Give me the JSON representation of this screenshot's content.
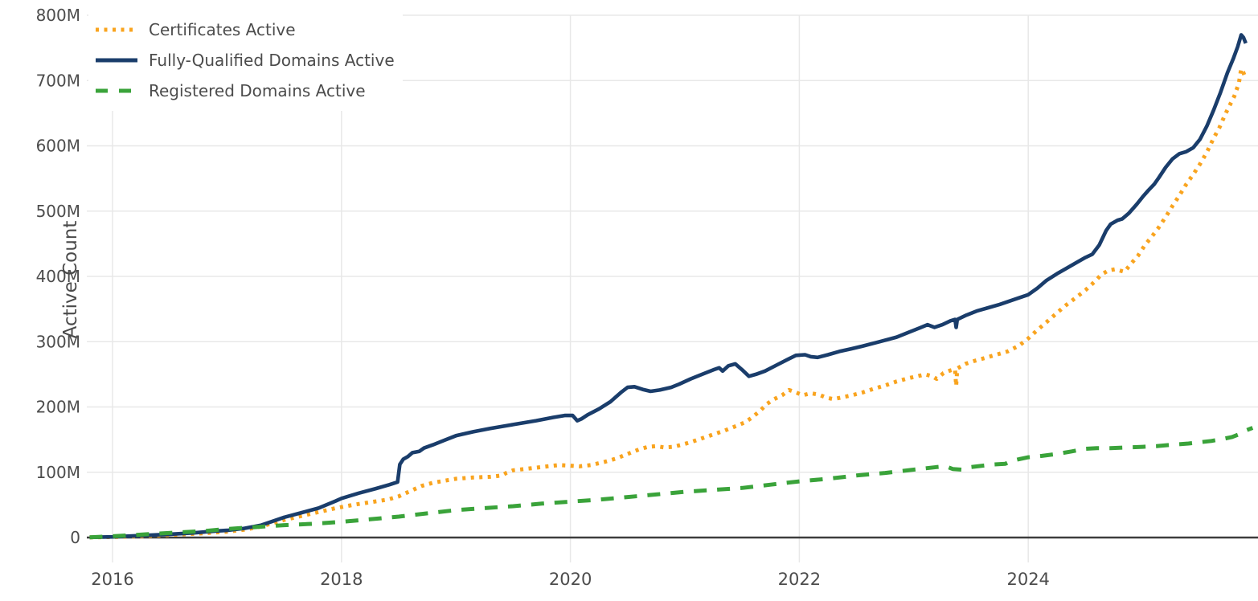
{
  "chart_data": {
    "type": "line",
    "title": "",
    "xlabel": "",
    "ylabel": "Active Count",
    "x_unit": "year",
    "xlim": [
      2015.78,
      2025.97
    ],
    "ylim": [
      0,
      800
    ],
    "grid": true,
    "legend_position": "top-left",
    "x_ticks": [
      2016,
      2018,
      2020,
      2022,
      2024
    ],
    "x_tick_labels": [
      "2016",
      "2018",
      "2020",
      "2022",
      "2024"
    ],
    "y_ticks": [
      0,
      100,
      200,
      300,
      400,
      500,
      600,
      700,
      800
    ],
    "y_tick_labels": [
      "0",
      "100M",
      "200M",
      "300M",
      "400M",
      "500M",
      "600M",
      "700M",
      "800M"
    ],
    "y_unit": "millions",
    "series": [
      {
        "name": "Certificates Active",
        "color": "#f9a41f",
        "style": "dotted",
        "points": [
          [
            2015.8,
            0.2
          ],
          [
            2016.0,
            0.8
          ],
          [
            2016.25,
            2
          ],
          [
            2016.5,
            4
          ],
          [
            2016.75,
            6
          ],
          [
            2017.0,
            9
          ],
          [
            2017.15,
            12
          ],
          [
            2017.3,
            17
          ],
          [
            2017.4,
            22
          ],
          [
            2017.5,
            27
          ],
          [
            2017.65,
            33
          ],
          [
            2017.8,
            39
          ],
          [
            2017.95,
            45
          ],
          [
            2018.1,
            50
          ],
          [
            2018.25,
            54
          ],
          [
            2018.4,
            58
          ],
          [
            2018.5,
            63
          ],
          [
            2018.6,
            71
          ],
          [
            2018.7,
            79
          ],
          [
            2018.8,
            84
          ],
          [
            2018.9,
            87
          ],
          [
            2019.0,
            90
          ],
          [
            2019.15,
            92
          ],
          [
            2019.3,
            93
          ],
          [
            2019.4,
            95
          ],
          [
            2019.44,
            99
          ],
          [
            2019.5,
            103
          ],
          [
            2019.6,
            105
          ],
          [
            2019.7,
            107
          ],
          [
            2019.8,
            109
          ],
          [
            2019.9,
            111
          ],
          [
            2020.0,
            110
          ],
          [
            2020.08,
            109
          ],
          [
            2020.18,
            111
          ],
          [
            2020.3,
            116
          ],
          [
            2020.4,
            121
          ],
          [
            2020.5,
            128
          ],
          [
            2020.6,
            135
          ],
          [
            2020.68,
            139
          ],
          [
            2020.75,
            140
          ],
          [
            2020.82,
            138
          ],
          [
            2020.9,
            139
          ],
          [
            2020.97,
            142
          ],
          [
            2021.05,
            146
          ],
          [
            2021.15,
            152
          ],
          [
            2021.25,
            158
          ],
          [
            2021.35,
            164
          ],
          [
            2021.45,
            171
          ],
          [
            2021.52,
            176
          ],
          [
            2021.58,
            183
          ],
          [
            2021.65,
            193
          ],
          [
            2021.72,
            205
          ],
          [
            2021.78,
            212
          ],
          [
            2021.85,
            218
          ],
          [
            2021.91,
            226
          ],
          [
            2021.96,
            223
          ],
          [
            2022.03,
            218
          ],
          [
            2022.1,
            221
          ],
          [
            2022.17,
            219
          ],
          [
            2022.24,
            214
          ],
          [
            2022.3,
            212
          ],
          [
            2022.38,
            215
          ],
          [
            2022.46,
            218
          ],
          [
            2022.55,
            222
          ],
          [
            2022.65,
            228
          ],
          [
            2022.75,
            233
          ],
          [
            2022.85,
            239
          ],
          [
            2022.95,
            244
          ],
          [
            2023.03,
            247
          ],
          [
            2023.1,
            250
          ],
          [
            2023.16,
            247
          ],
          [
            2023.2,
            243
          ],
          [
            2023.26,
            252
          ],
          [
            2023.32,
            256
          ],
          [
            2023.36,
            258
          ],
          [
            2023.37,
            232
          ],
          [
            2023.38,
            259
          ],
          [
            2023.45,
            266
          ],
          [
            2023.52,
            270
          ],
          [
            2023.62,
            275
          ],
          [
            2023.72,
            280
          ],
          [
            2023.82,
            285
          ],
          [
            2023.92,
            294
          ],
          [
            2024.0,
            305
          ],
          [
            2024.08,
            318
          ],
          [
            2024.16,
            330
          ],
          [
            2024.25,
            344
          ],
          [
            2024.33,
            356
          ],
          [
            2024.42,
            368
          ],
          [
            2024.5,
            379
          ],
          [
            2024.58,
            392
          ],
          [
            2024.64,
            403
          ],
          [
            2024.7,
            409
          ],
          [
            2024.76,
            411
          ],
          [
            2024.8,
            409
          ],
          [
            2024.84,
            407
          ],
          [
            2024.9,
            420
          ],
          [
            2024.96,
            432
          ],
          [
            2025.02,
            448
          ],
          [
            2025.08,
            461
          ],
          [
            2025.14,
            475
          ],
          [
            2025.2,
            491
          ],
          [
            2025.26,
            508
          ],
          [
            2025.32,
            524
          ],
          [
            2025.38,
            541
          ],
          [
            2025.44,
            556
          ],
          [
            2025.5,
            572
          ],
          [
            2025.56,
            590
          ],
          [
            2025.62,
            612
          ],
          [
            2025.67,
            628
          ],
          [
            2025.72,
            648
          ],
          [
            2025.76,
            662
          ],
          [
            2025.8,
            676
          ],
          [
            2025.84,
            696
          ],
          [
            2025.86,
            718
          ],
          [
            2025.88,
            712
          ],
          [
            2025.9,
            703
          ]
        ]
      },
      {
        "name": "Fully-Qualified Domains Active",
        "color": "#1a3d6b",
        "style": "solid",
        "points": [
          [
            2015.8,
            0.3
          ],
          [
            2016.0,
            1
          ],
          [
            2016.25,
            3
          ],
          [
            2016.5,
            5
          ],
          [
            2016.7,
            7
          ],
          [
            2016.9,
            10
          ],
          [
            2017.0,
            11
          ],
          [
            2017.15,
            14
          ],
          [
            2017.3,
            19
          ],
          [
            2017.4,
            25
          ],
          [
            2017.5,
            31
          ],
          [
            2017.65,
            38
          ],
          [
            2017.8,
            45
          ],
          [
            2017.95,
            56
          ],
          [
            2018.0,
            60
          ],
          [
            2018.15,
            68
          ],
          [
            2018.3,
            75
          ],
          [
            2018.42,
            81
          ],
          [
            2018.49,
            85
          ],
          [
            2018.51,
            112
          ],
          [
            2018.54,
            120
          ],
          [
            2018.58,
            124
          ],
          [
            2018.62,
            130
          ],
          [
            2018.68,
            132
          ],
          [
            2018.72,
            137
          ],
          [
            2018.8,
            142
          ],
          [
            2018.9,
            149
          ],
          [
            2019.0,
            156
          ],
          [
            2019.15,
            162
          ],
          [
            2019.3,
            167
          ],
          [
            2019.5,
            173
          ],
          [
            2019.7,
            179
          ],
          [
            2019.85,
            184
          ],
          [
            2019.95,
            187
          ],
          [
            2020.02,
            187
          ],
          [
            2020.06,
            179
          ],
          [
            2020.1,
            182
          ],
          [
            2020.15,
            188
          ],
          [
            2020.25,
            197
          ],
          [
            2020.35,
            208
          ],
          [
            2020.44,
            222
          ],
          [
            2020.5,
            230
          ],
          [
            2020.56,
            231
          ],
          [
            2020.63,
            227
          ],
          [
            2020.7,
            224
          ],
          [
            2020.78,
            226
          ],
          [
            2020.88,
            230
          ],
          [
            2020.95,
            235
          ],
          [
            2021.05,
            243
          ],
          [
            2021.15,
            250
          ],
          [
            2021.25,
            257
          ],
          [
            2021.3,
            260
          ],
          [
            2021.33,
            255
          ],
          [
            2021.38,
            263
          ],
          [
            2021.44,
            266
          ],
          [
            2021.5,
            257
          ],
          [
            2021.56,
            247
          ],
          [
            2021.62,
            250
          ],
          [
            2021.7,
            255
          ],
          [
            2021.8,
            264
          ],
          [
            2021.9,
            273
          ],
          [
            2021.97,
            279
          ],
          [
            2022.05,
            280
          ],
          [
            2022.1,
            277
          ],
          [
            2022.16,
            276
          ],
          [
            2022.25,
            280
          ],
          [
            2022.35,
            285
          ],
          [
            2022.45,
            289
          ],
          [
            2022.55,
            293
          ],
          [
            2022.7,
            300
          ],
          [
            2022.85,
            307
          ],
          [
            2022.95,
            314
          ],
          [
            2023.05,
            321
          ],
          [
            2023.12,
            326
          ],
          [
            2023.18,
            322
          ],
          [
            2023.25,
            326
          ],
          [
            2023.32,
            332
          ],
          [
            2023.36,
            334
          ],
          [
            2023.37,
            322
          ],
          [
            2023.38,
            334
          ],
          [
            2023.45,
            340
          ],
          [
            2023.55,
            347
          ],
          [
            2023.65,
            352
          ],
          [
            2023.75,
            357
          ],
          [
            2023.85,
            363
          ],
          [
            2023.95,
            369
          ],
          [
            2024.0,
            372
          ],
          [
            2024.08,
            382
          ],
          [
            2024.16,
            394
          ],
          [
            2024.25,
            404
          ],
          [
            2024.33,
            412
          ],
          [
            2024.42,
            421
          ],
          [
            2024.5,
            429
          ],
          [
            2024.56,
            434
          ],
          [
            2024.62,
            448
          ],
          [
            2024.68,
            470
          ],
          [
            2024.72,
            480
          ],
          [
            2024.78,
            486
          ],
          [
            2024.82,
            488
          ],
          [
            2024.88,
            497
          ],
          [
            2024.95,
            511
          ],
          [
            2025.0,
            522
          ],
          [
            2025.05,
            532
          ],
          [
            2025.1,
            541
          ],
          [
            2025.14,
            551
          ],
          [
            2025.2,
            567
          ],
          [
            2025.26,
            580
          ],
          [
            2025.32,
            588
          ],
          [
            2025.38,
            591
          ],
          [
            2025.44,
            597
          ],
          [
            2025.5,
            610
          ],
          [
            2025.56,
            630
          ],
          [
            2025.62,
            655
          ],
          [
            2025.68,
            682
          ],
          [
            2025.74,
            712
          ],
          [
            2025.79,
            733
          ],
          [
            2025.83,
            752
          ],
          [
            2025.86,
            770
          ],
          [
            2025.88,
            766
          ],
          [
            2025.9,
            757
          ]
        ]
      },
      {
        "name": "Registered Domains Active",
        "color": "#3aa33a",
        "style": "dashed",
        "points": [
          [
            2015.8,
            0.3
          ],
          [
            2016.0,
            2
          ],
          [
            2016.2,
            4
          ],
          [
            2016.4,
            6
          ],
          [
            2016.6,
            8
          ],
          [
            2016.8,
            10
          ],
          [
            2017.0,
            13
          ],
          [
            2017.25,
            16
          ],
          [
            2017.5,
            19
          ],
          [
            2017.75,
            21
          ],
          [
            2018.0,
            24
          ],
          [
            2018.25,
            28
          ],
          [
            2018.5,
            32
          ],
          [
            2018.75,
            37
          ],
          [
            2019.0,
            42
          ],
          [
            2019.25,
            45
          ],
          [
            2019.5,
            48
          ],
          [
            2019.75,
            52
          ],
          [
            2020.0,
            55
          ],
          [
            2020.25,
            58
          ],
          [
            2020.5,
            62
          ],
          [
            2020.75,
            66
          ],
          [
            2021.0,
            70
          ],
          [
            2021.25,
            73
          ],
          [
            2021.5,
            76
          ],
          [
            2021.75,
            81
          ],
          [
            2022.0,
            86
          ],
          [
            2022.25,
            90
          ],
          [
            2022.5,
            95
          ],
          [
            2022.75,
            99
          ],
          [
            2023.0,
            104
          ],
          [
            2023.1,
            106
          ],
          [
            2023.2,
            108
          ],
          [
            2023.28,
            109
          ],
          [
            2023.34,
            105
          ],
          [
            2023.42,
            104
          ],
          [
            2023.5,
            108
          ],
          [
            2023.6,
            110
          ],
          [
            2023.7,
            112
          ],
          [
            2023.8,
            113
          ],
          [
            2023.85,
            117
          ],
          [
            2023.92,
            120
          ],
          [
            2024.0,
            123
          ],
          [
            2024.12,
            125
          ],
          [
            2024.25,
            128
          ],
          [
            2024.38,
            132
          ],
          [
            2024.5,
            136
          ],
          [
            2024.6,
            137
          ],
          [
            2024.72,
            137
          ],
          [
            2024.85,
            138
          ],
          [
            2025.0,
            139
          ],
          [
            2025.12,
            140
          ],
          [
            2025.25,
            142
          ],
          [
            2025.4,
            144
          ],
          [
            2025.5,
            146
          ],
          [
            2025.6,
            148
          ],
          [
            2025.7,
            151
          ],
          [
            2025.78,
            154
          ],
          [
            2025.84,
            158
          ],
          [
            2025.9,
            164
          ],
          [
            2025.96,
            168
          ]
        ]
      }
    ]
  },
  "colors": {
    "background": "#ffffff",
    "grid": "#e8e8e8",
    "axis_line": "#3d3d3d",
    "tick_text": "#4c4c4c",
    "axis_title_text": "#4a4a4a",
    "legend_text": "#4c4c4c"
  }
}
